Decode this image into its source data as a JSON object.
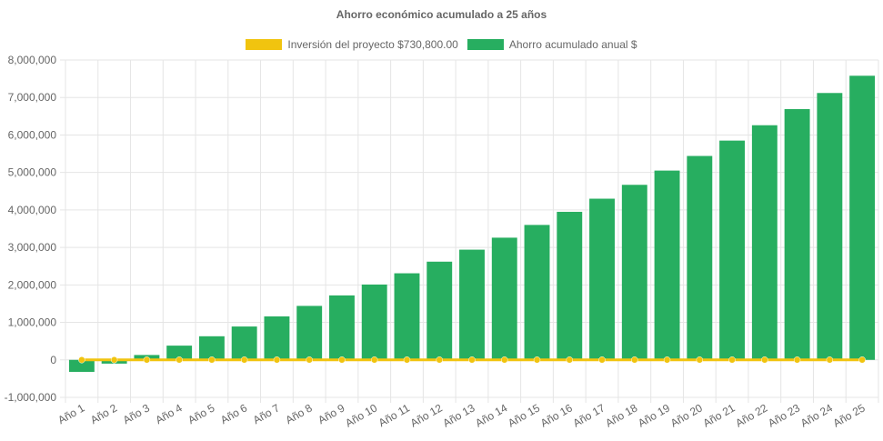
{
  "chart_data": {
    "type": "bar",
    "title": "Ahorro económico acumulado a 25 años",
    "categories": [
      "Año 1",
      "Año 2",
      "Año 3",
      "Año 4",
      "Año 5",
      "Año 6",
      "Año 7",
      "Año 8",
      "Año 9",
      "Año 10",
      "Año 11",
      "Año 12",
      "Año 13",
      "Año 14",
      "Año 15",
      "Año 16",
      "Año 17",
      "Año 18",
      "Año 19",
      "Año 20",
      "Año 21",
      "Año 22",
      "Año 23",
      "Año 24",
      "Año 25"
    ],
    "series": [
      {
        "name": "Inversión del proyecto $730,800.00",
        "type": "line",
        "color": "#f1c40f",
        "values": [
          0,
          0,
          0,
          0,
          0,
          0,
          0,
          0,
          0,
          0,
          0,
          0,
          0,
          0,
          0,
          0,
          0,
          0,
          0,
          0,
          0,
          0,
          0,
          0,
          0
        ]
      },
      {
        "name": "Ahorro acumulado anual $",
        "type": "bar",
        "color": "#27ae60",
        "values": [
          -320000,
          -100000,
          130000,
          380000,
          630000,
          890000,
          1160000,
          1440000,
          1720000,
          2010000,
          2310000,
          2620000,
          2940000,
          3260000,
          3600000,
          3950000,
          4300000,
          4670000,
          5050000,
          5440000,
          5850000,
          6260000,
          6690000,
          7120000,
          7580000
        ]
      }
    ],
    "y_ticks": [
      "8,000,000",
      "7,000,000",
      "6,000,000",
      "5,000,000",
      "4,000,000",
      "3,000,000",
      "2,000,000",
      "1,000,000",
      "0",
      "-1,000,000"
    ],
    "ylim": [
      -1000000,
      8000000
    ],
    "grid": true,
    "legend_position": "top"
  }
}
